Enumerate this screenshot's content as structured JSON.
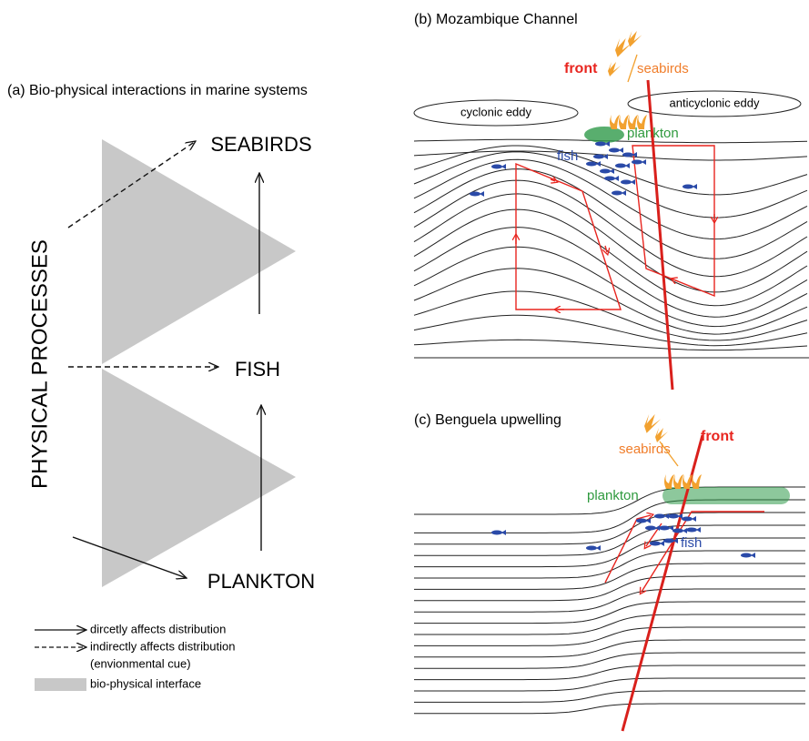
{
  "panel_a": {
    "title": "(a) Bio-physical interactions in marine systems",
    "axis_label": "PHYSICAL PROCESSES",
    "nodes": [
      "SEABIRDS",
      "FISH",
      "PLANKTON"
    ],
    "legend": [
      "dircetly affects distribution",
      "indirectly affects distribution",
      "(envionmental cue)",
      "bio-physical interface"
    ]
  },
  "panel_b": {
    "title": "(b) Mozambique Channel",
    "front": "front",
    "seabirds": "seabirds",
    "cyclonic": "cyclonic eddy",
    "anticyclonic": "anticyclonic eddy",
    "plankton": "plankton",
    "fish": "fish"
  },
  "panel_c": {
    "title": "(c) Benguela upwelling",
    "front": "front",
    "seabirds": "seabirds",
    "plankton": "plankton",
    "fish": "fish"
  }
}
